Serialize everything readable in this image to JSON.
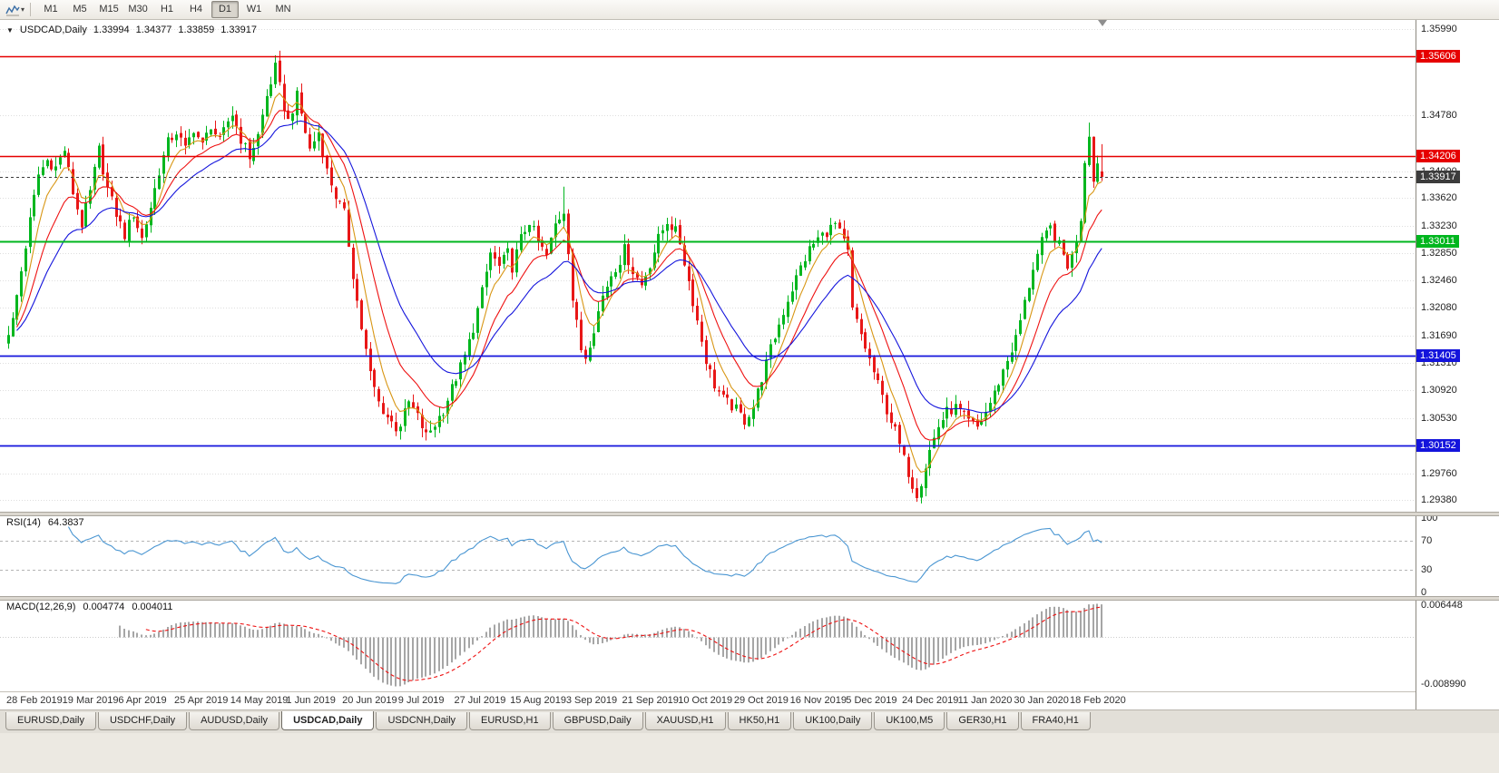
{
  "toolbar": {
    "timeframes": [
      {
        "label": "M1",
        "active": false
      },
      {
        "label": "M5",
        "active": false
      },
      {
        "label": "M15",
        "active": false
      },
      {
        "label": "M30",
        "active": false
      },
      {
        "label": "H1",
        "active": false
      },
      {
        "label": "H4",
        "active": false
      },
      {
        "label": "D1",
        "active": true
      },
      {
        "label": "W1",
        "active": false
      },
      {
        "label": "MN",
        "active": false
      }
    ]
  },
  "chart_header": {
    "marker": "▼",
    "symbol": "USDCAD,Daily",
    "open": "1.33994",
    "high": "1.34377",
    "low": "1.33859",
    "close": "1.33917"
  },
  "chart_data": {
    "type": "candlestick",
    "symbol": "USDCAD",
    "timeframe": "Daily",
    "current_ohlc": {
      "open": 1.33994,
      "high": 1.34377,
      "low": 1.33859,
      "close": 1.33917
    },
    "price_axis": {
      "min": 1.2922,
      "max": 1.3612,
      "ticks": [
        "1.35990",
        "1.34780",
        "1.34000",
        "1.33620",
        "1.33230",
        "1.32850",
        "1.32460",
        "1.32080",
        "1.31690",
        "1.31310",
        "1.30920",
        "1.30530",
        "1.29760",
        "1.29380"
      ]
    },
    "levels": [
      {
        "price": 1.35606,
        "label": "1.35606",
        "color": "#e60000",
        "style": "solid",
        "width": 1.6,
        "type": "resistance"
      },
      {
        "price": 1.34206,
        "label": "1.34206",
        "color": "#e60000",
        "style": "solid",
        "width": 1.6,
        "type": "resistance"
      },
      {
        "price": 1.33917,
        "label": "1.33917",
        "color": "#3c3c3c",
        "style": "dashed",
        "width": 1,
        "type": "current-price"
      },
      {
        "price": 1.33011,
        "label": "1.33011",
        "color": "#00b61e",
        "style": "solid",
        "width": 2,
        "type": "support"
      },
      {
        "price": 1.31405,
        "label": "1.31405",
        "color": "#1414dc",
        "style": "solid",
        "width": 1.8,
        "type": "support"
      },
      {
        "price": 1.30152,
        "label": "1.30152",
        "color": "#1414dc",
        "style": "solid",
        "width": 1.8,
        "type": "support"
      }
    ],
    "colors": {
      "bull": "#00b61e",
      "bear": "#e81717",
      "grid": "#dedede"
    },
    "moving_averages": [
      {
        "name": "fast-ma",
        "period": 6,
        "color": "#d89614"
      },
      {
        "name": "medium-ma",
        "period": 13,
        "color": "#ee1111"
      },
      {
        "name": "slow-ma",
        "period": 24,
        "color": "#1414dc"
      }
    ],
    "candles": {
      "count": 255,
      "close_waypoints": [
        [
          0,
          1.3175
        ],
        [
          1,
          1.319
        ],
        [
          3,
          1.326
        ],
        [
          5,
          1.333
        ],
        [
          7,
          1.3395
        ],
        [
          9,
          1.3415
        ],
        [
          11,
          1.3405
        ],
        [
          13,
          1.343
        ],
        [
          15,
          1.337
        ],
        [
          17,
          1.3325
        ],
        [
          19,
          1.337
        ],
        [
          21,
          1.343
        ],
        [
          23,
          1.3375
        ],
        [
          25,
          1.334
        ],
        [
          27,
          1.331
        ],
        [
          29,
          1.334
        ],
        [
          31,
          1.3305
        ],
        [
          33,
          1.335
        ],
        [
          35,
          1.34
        ],
        [
          37,
          1.344
        ],
        [
          39,
          1.3455
        ],
        [
          41,
          1.343
        ],
        [
          43,
          1.346
        ],
        [
          45,
          1.3435
        ],
        [
          47,
          1.3465
        ],
        [
          49,
          1.344
        ],
        [
          51,
          1.347
        ],
        [
          52,
          1.348
        ],
        [
          54,
          1.3445
        ],
        [
          56,
          1.342
        ],
        [
          58,
          1.345
        ],
        [
          60,
          1.3505
        ],
        [
          62,
          1.3545
        ],
        [
          64,
          1.349
        ],
        [
          65,
          1.347
        ],
        [
          67,
          1.3505
        ],
        [
          68,
          1.348
        ],
        [
          70,
          1.343
        ],
        [
          72,
          1.3455
        ],
        [
          74,
          1.34
        ],
        [
          76,
          1.3365
        ],
        [
          78,
          1.334
        ],
        [
          80,
          1.3255
        ],
        [
          82,
          1.318
        ],
        [
          84,
          1.3115
        ],
        [
          86,
          1.3075
        ],
        [
          88,
          1.3055
        ],
        [
          90,
          1.304
        ],
        [
          91,
          1.3045
        ],
        [
          93,
          1.3075
        ],
        [
          95,
          1.3055
        ],
        [
          97,
          1.3028
        ],
        [
          99,
          1.3045
        ],
        [
          101,
          1.3065
        ],
        [
          103,
          1.3095
        ],
        [
          104,
          1.311
        ],
        [
          106,
          1.314
        ],
        [
          108,
          1.318
        ],
        [
          110,
          1.323
        ],
        [
          112,
          1.3285
        ],
        [
          114,
          1.3265
        ],
        [
          116,
          1.3285
        ],
        [
          117,
          1.3265
        ],
        [
          119,
          1.3305
        ],
        [
          121,
          1.333
        ],
        [
          123,
          1.33
        ],
        [
          125,
          1.328
        ],
        [
          127,
          1.3325
        ],
        [
          129,
          1.3345
        ],
        [
          130,
          1.329
        ],
        [
          131,
          1.322
        ],
        [
          133,
          1.315
        ],
        [
          134,
          1.314
        ],
        [
          136,
          1.318
        ],
        [
          138,
          1.3225
        ],
        [
          140,
          1.3255
        ],
        [
          142,
          1.3275
        ],
        [
          143,
          1.329
        ],
        [
          145,
          1.326
        ],
        [
          147,
          1.324
        ],
        [
          149,
          1.327
        ],
        [
          151,
          1.3305
        ],
        [
          153,
          1.333
        ],
        [
          155,
          1.3315
        ],
        [
          156,
          1.33
        ],
        [
          158,
          1.3245
        ],
        [
          160,
          1.319
        ],
        [
          162,
          1.3135
        ],
        [
          164,
          1.31
        ],
        [
          166,
          1.308
        ],
        [
          168,
          1.307
        ],
        [
          169,
          1.3065
        ],
        [
          171,
          1.305
        ],
        [
          173,
          1.307
        ],
        [
          175,
          1.311
        ],
        [
          177,
          1.315
        ],
        [
          179,
          1.3185
        ],
        [
          181,
          1.322
        ],
        [
          182,
          1.3235
        ],
        [
          184,
          1.3265
        ],
        [
          186,
          1.329
        ],
        [
          188,
          1.3305
        ],
        [
          190,
          1.3315
        ],
        [
          192,
          1.3325
        ],
        [
          194,
          1.33
        ],
        [
          195,
          1.3285
        ],
        [
          196,
          1.3205
        ],
        [
          198,
          1.317
        ],
        [
          200,
          1.3135
        ],
        [
          202,
          1.31
        ],
        [
          204,
          1.3065
        ],
        [
          206,
          1.3035
        ],
        [
          208,
          1.2995
        ],
        [
          210,
          1.296
        ],
        [
          211,
          1.2948
        ],
        [
          212,
          1.2965
        ],
        [
          214,
          1.3008
        ],
        [
          216,
          1.3042
        ],
        [
          218,
          1.3062
        ],
        [
          220,
          1.3068
        ],
        [
          221,
          1.3062
        ],
        [
          223,
          1.3048
        ],
        [
          225,
          1.304
        ],
        [
          227,
          1.3062
        ],
        [
          229,
          1.3088
        ],
        [
          231,
          1.312
        ],
        [
          233,
          1.315
        ],
        [
          234,
          1.3165
        ],
        [
          236,
          1.3215
        ],
        [
          238,
          1.3265
        ],
        [
          240,
          1.33
        ],
        [
          242,
          1.332
        ],
        [
          244,
          1.3295
        ],
        [
          246,
          1.3268
        ],
        [
          247,
          1.328
        ],
        [
          248,
          1.3305
        ],
        [
          249,
          1.3335
        ],
        [
          250,
          1.3415
        ],
        [
          251,
          1.3455
        ],
        [
          252,
          1.3385
        ],
        [
          253,
          1.3412
        ],
        [
          254,
          1.33917
        ]
      ]
    },
    "x_axis": [
      {
        "i": 0,
        "t": "28 Feb 2019"
      },
      {
        "i": 13,
        "t": "19 Mar 2019"
      },
      {
        "i": 26,
        "t": "6 Apr 2019"
      },
      {
        "i": 39,
        "t": "25 Apr 2019"
      },
      {
        "i": 52,
        "t": "14 May 2019"
      },
      {
        "i": 65,
        "t": "1 Jun 2019"
      },
      {
        "i": 78,
        "t": "20 Jun 2019"
      },
      {
        "i": 91,
        "t": "9 Jul 2019"
      },
      {
        "i": 104,
        "t": "27 Jul 2019"
      },
      {
        "i": 117,
        "t": "15 Aug 2019"
      },
      {
        "i": 130,
        "t": "3 Sep 2019"
      },
      {
        "i": 143,
        "t": "21 Sep 2019"
      },
      {
        "i": 156,
        "t": "10 Oct 2019"
      },
      {
        "i": 169,
        "t": "29 Oct 2019"
      },
      {
        "i": 182,
        "t": "16 Nov 2019"
      },
      {
        "i": 195,
        "t": "5 Dec 2019"
      },
      {
        "i": 208,
        "t": "24 Dec 2019"
      },
      {
        "i": 221,
        "t": "11 Jan 2020"
      },
      {
        "i": 234,
        "t": "30 Jan 2020"
      },
      {
        "i": 247,
        "t": "18 Feb 2020"
      }
    ],
    "rsi": {
      "name": "RSI(14)",
      "value": "64.3837",
      "line_color": "#4a96d2",
      "levels": [
        70,
        30
      ],
      "axis_labels": [
        {
          "v": 100,
          "t": "100"
        },
        {
          "v": 70,
          "t": "70"
        },
        {
          "v": 30,
          "t": "30"
        },
        {
          "v": 0,
          "t": "0"
        }
      ]
    },
    "macd": {
      "name": "MACD(12,26,9)",
      "value": "0.004774",
      "signal_value": "0.004011",
      "histogram_color": "#a6a6a6",
      "signal_color": "#ee1111",
      "axis_top": "0.006448",
      "axis_bottom": "-0.008990"
    }
  },
  "tabs": [
    {
      "label": "EURUSD,Daily",
      "active": false
    },
    {
      "label": "USDCHF,Daily",
      "active": false
    },
    {
      "label": "AUDUSD,Daily",
      "active": false
    },
    {
      "label": "USDCAD,Daily",
      "active": true
    },
    {
      "label": "USDCNH,Daily",
      "active": false
    },
    {
      "label": "EURUSD,H1",
      "active": false
    },
    {
      "label": "GBPUSD,Daily",
      "active": false
    },
    {
      "label": "XAUUSD,H1",
      "active": false
    },
    {
      "label": "HK50,H1",
      "active": false
    },
    {
      "label": "UK100,Daily",
      "active": false
    },
    {
      "label": "UK100,M5",
      "active": false
    },
    {
      "label": "GER30,H1",
      "active": false
    },
    {
      "label": "FRA40,H1",
      "active": false
    }
  ]
}
